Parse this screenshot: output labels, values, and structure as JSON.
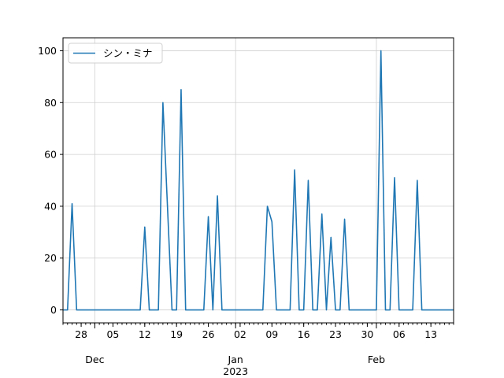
{
  "chart_data": {
    "type": "line",
    "grid": true,
    "legend_position": "upper-left",
    "ylim": [
      -5,
      105
    ],
    "yticks": [
      0,
      20,
      40,
      60,
      80,
      100
    ],
    "xlim": [
      "2022-11-24",
      "2023-02-18"
    ],
    "xticks": [
      {
        "date": "2022-11-28",
        "label": "28"
      },
      {
        "date": "2022-12-05",
        "label": "05"
      },
      {
        "date": "2022-12-12",
        "label": "12"
      },
      {
        "date": "2022-12-19",
        "label": "19"
      },
      {
        "date": "2022-12-26",
        "label": "26"
      },
      {
        "date": "2023-01-02",
        "label": "02"
      },
      {
        "date": "2023-01-09",
        "label": "09"
      },
      {
        "date": "2023-01-16",
        "label": "16"
      },
      {
        "date": "2023-01-23",
        "label": "23"
      },
      {
        "date": "2023-01-30",
        "label": "30"
      },
      {
        "date": "2023-02-06",
        "label": "06"
      },
      {
        "date": "2023-02-13",
        "label": "13"
      }
    ],
    "month_labels": [
      {
        "date": "2022-12-01",
        "label": "Dec"
      },
      {
        "date": "2023-01-01",
        "label": "Jan"
      },
      {
        "date": "2023-02-01",
        "label": "Feb"
      }
    ],
    "year_labels": [
      {
        "date": "2023-01-01",
        "label": "2023"
      }
    ],
    "series": [
      {
        "name": "シン・ミナ",
        "color": "#1f77b4",
        "points": [
          [
            "2022-11-24",
            0
          ],
          [
            "2022-11-25",
            0
          ],
          [
            "2022-11-26",
            41
          ],
          [
            "2022-11-27",
            0
          ],
          [
            "2022-12-11",
            0
          ],
          [
            "2022-12-12",
            32
          ],
          [
            "2022-12-13",
            0
          ],
          [
            "2022-12-15",
            0
          ],
          [
            "2022-12-16",
            80
          ],
          [
            "2022-12-17",
            40
          ],
          [
            "2022-12-18",
            0
          ],
          [
            "2022-12-19",
            0
          ],
          [
            "2022-12-20",
            85
          ],
          [
            "2022-12-21",
            0
          ],
          [
            "2022-12-25",
            0
          ],
          [
            "2022-12-26",
            36
          ],
          [
            "2022-12-27",
            0
          ],
          [
            "2022-12-28",
            44
          ],
          [
            "2022-12-29",
            0
          ],
          [
            "2023-01-07",
            0
          ],
          [
            "2023-01-08",
            40
          ],
          [
            "2023-01-09",
            34
          ],
          [
            "2023-01-10",
            0
          ],
          [
            "2023-01-13",
            0
          ],
          [
            "2023-01-14",
            54
          ],
          [
            "2023-01-15",
            0
          ],
          [
            "2023-01-16",
            0
          ],
          [
            "2023-01-17",
            50
          ],
          [
            "2023-01-18",
            0
          ],
          [
            "2023-01-19",
            0
          ],
          [
            "2023-01-20",
            37
          ],
          [
            "2023-01-21",
            0
          ],
          [
            "2023-01-22",
            28
          ],
          [
            "2023-01-23",
            0
          ],
          [
            "2023-01-24",
            0
          ],
          [
            "2023-01-25",
            35
          ],
          [
            "2023-01-26",
            0
          ],
          [
            "2023-02-01",
            0
          ],
          [
            "2023-02-02",
            100
          ],
          [
            "2023-02-03",
            0
          ],
          [
            "2023-02-04",
            0
          ],
          [
            "2023-02-05",
            51
          ],
          [
            "2023-02-06",
            0
          ],
          [
            "2023-02-09",
            0
          ],
          [
            "2023-02-10",
            50
          ],
          [
            "2023-02-11",
            0
          ],
          [
            "2023-02-18",
            0
          ]
        ]
      }
    ]
  }
}
